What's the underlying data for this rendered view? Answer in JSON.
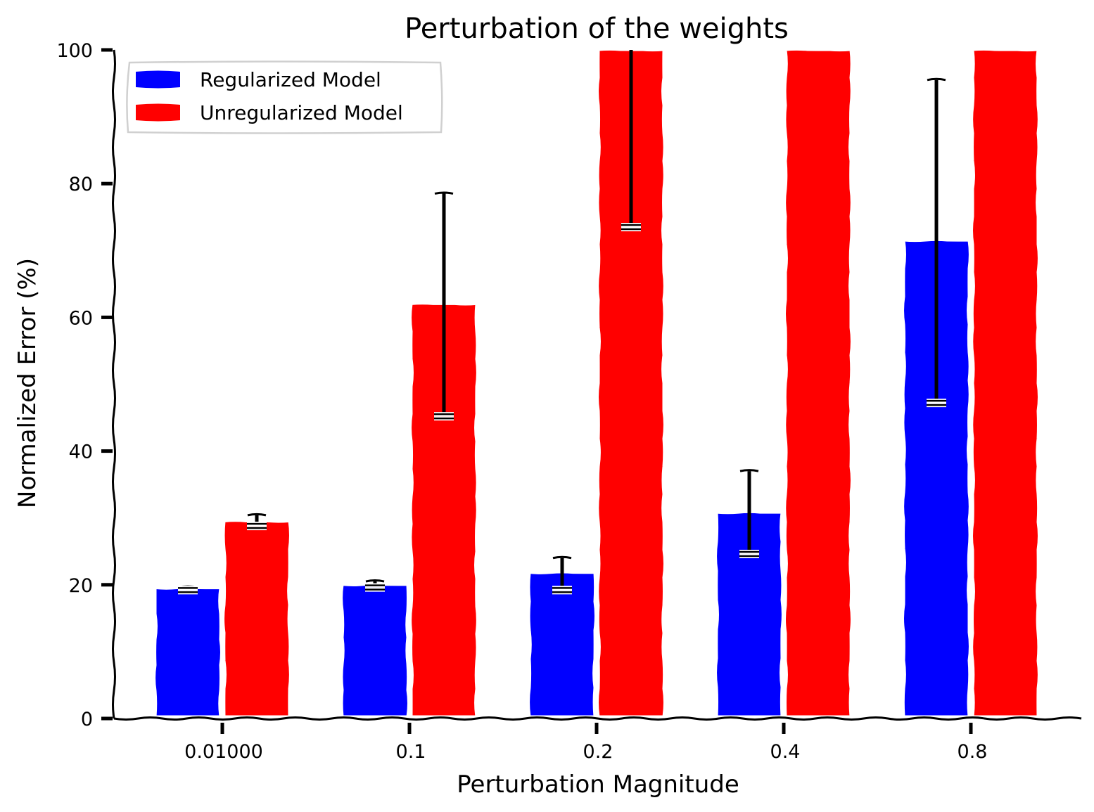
{
  "chart_data": {
    "type": "bar",
    "title": "Perturbation of the weights",
    "xlabel": "Perturbation Magnitude",
    "ylabel": "Normalized Error (%)",
    "categories": [
      "0.01000",
      "0.1",
      "0.2",
      "0.4",
      "0.8"
    ],
    "ylim": [
      0,
      100
    ],
    "yticks": [
      0,
      20,
      40,
      60,
      80,
      100
    ],
    "grid": false,
    "legend_position": "top-left",
    "series": [
      {
        "name": "Regularized Model",
        "color": "#0000ff",
        "values": [
          19.5,
          20.0,
          21.8,
          30.8,
          71.5
        ],
        "error_low": [
          19.2,
          19.6,
          19.2,
          24.6,
          47.2
        ],
        "error_high": [
          19.6,
          20.5,
          24.0,
          37.0,
          95.5
        ]
      },
      {
        "name": "Unregularized Model",
        "color": "#ff0000",
        "values": [
          29.5,
          62.0,
          100,
          100,
          100
        ],
        "error_low": [
          28.8,
          45.2,
          73.5,
          null,
          null
        ],
        "error_high": [
          30.4,
          78.5,
          100,
          null,
          null
        ]
      }
    ]
  }
}
